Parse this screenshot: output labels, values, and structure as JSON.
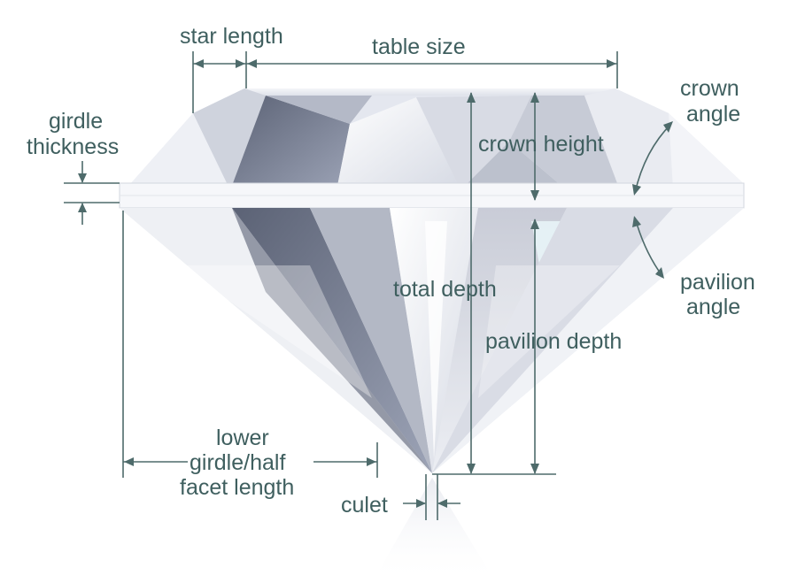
{
  "labels": {
    "star_length": "star length",
    "table_size": "table size",
    "crown_angle_line1": "crown",
    "crown_angle_line2": "angle",
    "girdle_thickness_line1": "girdle",
    "girdle_thickness_line2": "thickness",
    "crown_height": "crown height",
    "total_depth": "total depth",
    "pavilion_angle_line1": "pavilion",
    "pavilion_angle_line2": "angle",
    "pavilion_depth": "pavilion depth",
    "lower_girdle_line1": "lower",
    "lower_girdle_line2": "girdle/half",
    "lower_girdle_line3": "facet length",
    "culet": "culet"
  },
  "colors": {
    "label_text": "#3f5f5f",
    "dimension_lines": "#4e6b6b",
    "background": "#ffffff"
  }
}
